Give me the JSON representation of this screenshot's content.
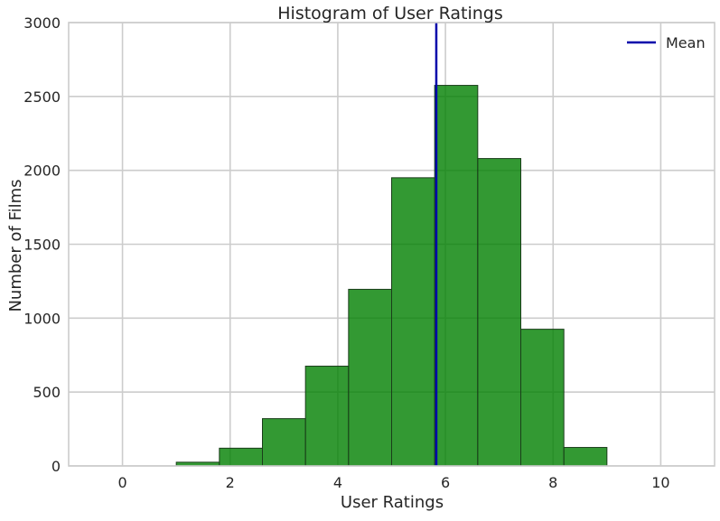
{
  "chart_data": {
    "type": "bar",
    "title": "Histogram of User Ratings",
    "xlabel": "User Ratings",
    "ylabel": "Number of Films",
    "xlim": [
      -1,
      11
    ],
    "ylim": [
      0,
      3000
    ],
    "xticks": [
      0,
      2,
      4,
      6,
      8,
      10
    ],
    "yticks": [
      0,
      500,
      1000,
      1500,
      2000,
      2500,
      3000
    ],
    "grid": true,
    "legend_position": "top-right",
    "bins": [
      {
        "x0": 1.0,
        "x1": 1.8,
        "count": 25
      },
      {
        "x0": 1.8,
        "x1": 2.6,
        "count": 120
      },
      {
        "x0": 2.6,
        "x1": 3.4,
        "count": 320
      },
      {
        "x0": 3.4,
        "x1": 4.2,
        "count": 675
      },
      {
        "x0": 4.2,
        "x1": 5.0,
        "count": 1195
      },
      {
        "x0": 5.0,
        "x1": 5.8,
        "count": 1950
      },
      {
        "x0": 5.8,
        "x1": 6.6,
        "count": 2575
      },
      {
        "x0": 6.6,
        "x1": 7.4,
        "count": 2080
      },
      {
        "x0": 7.4,
        "x1": 8.2,
        "count": 925
      },
      {
        "x0": 8.2,
        "x1": 9.0,
        "count": 125
      }
    ],
    "mean_line": {
      "label": "Mean",
      "x": 5.83
    },
    "colors": {
      "bar": "#008000",
      "bar_edge": "#1a3d1a",
      "mean": "#0000aa",
      "grid": "#cccccc",
      "axis": "#cccccc"
    }
  }
}
